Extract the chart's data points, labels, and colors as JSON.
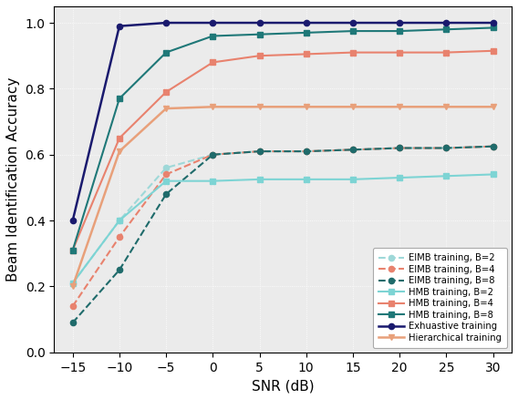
{
  "snr": [
    -15,
    -10,
    -5,
    0,
    5,
    10,
    15,
    20,
    25,
    30
  ],
  "EIMB_B2": [
    0.21,
    0.4,
    0.56,
    0.6,
    0.61,
    0.61,
    0.615,
    0.62,
    0.62,
    0.625
  ],
  "EIMB_B4": [
    0.14,
    0.35,
    0.54,
    0.6,
    0.61,
    0.61,
    0.615,
    0.62,
    0.62,
    0.625
  ],
  "EIMB_B8": [
    0.09,
    0.25,
    0.48,
    0.6,
    0.61,
    0.61,
    0.615,
    0.62,
    0.62,
    0.625
  ],
  "HMB_B2": [
    0.21,
    0.4,
    0.52,
    0.52,
    0.525,
    0.525,
    0.525,
    0.53,
    0.535,
    0.54
  ],
  "HMB_B4": [
    0.31,
    0.65,
    0.79,
    0.88,
    0.9,
    0.905,
    0.91,
    0.91,
    0.91,
    0.915
  ],
  "HMB_B8": [
    0.31,
    0.77,
    0.91,
    0.96,
    0.965,
    0.97,
    0.975,
    0.975,
    0.98,
    0.985
  ],
  "Exhaustive": [
    0.4,
    0.99,
    1.0,
    1.0,
    1.0,
    1.0,
    1.0,
    1.0,
    1.0,
    1.0
  ],
  "Hierarchical": [
    0.2,
    0.61,
    0.74,
    0.745,
    0.745,
    0.745,
    0.745,
    0.745,
    0.745,
    0.745
  ],
  "color_EIMB_B2": "#9ed8d8",
  "color_EIMB_B4": "#e8826e",
  "color_EIMB_B8": "#1f6b6b",
  "color_HMB_B2": "#7dd4d4",
  "color_HMB_B4": "#e8826e",
  "color_HMB_B8": "#1f7878",
  "color_Exhaustive": "#1a1a6e",
  "color_Hierarchical": "#e8a07a",
  "xlabel": "SNR (dB)",
  "ylabel": "Beam Identification Accuracy",
  "xlim": [
    -17,
    32
  ],
  "ylim": [
    0,
    1.05
  ],
  "xticks": [
    -15,
    -10,
    -5,
    0,
    5,
    10,
    15,
    20,
    25,
    30
  ],
  "yticks": [
    0,
    0.2,
    0.4,
    0.6,
    0.8,
    1.0
  ],
  "bg_color": "#ebebeb"
}
